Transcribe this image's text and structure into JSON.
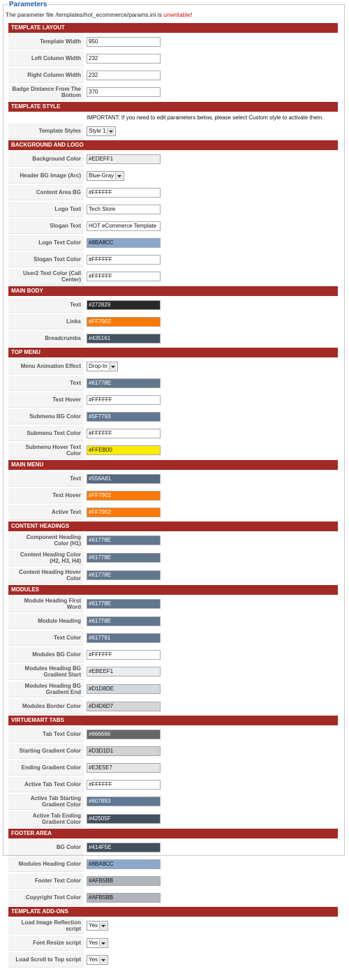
{
  "legend": "Parameters",
  "notice": {
    "text": "The parameter file /templates/hot_ecommerce/params.ini is ",
    "status": "unwritable",
    "end": "!"
  },
  "sections": [
    {
      "title": "TEMPLATE LAYOUT",
      "rows": [
        {
          "type": "input",
          "label": "Template Width",
          "value": "950"
        },
        {
          "type": "input",
          "label": "Left Column Width",
          "value": "232"
        },
        {
          "type": "input",
          "label": "Right Column Width",
          "value": "232"
        },
        {
          "type": "input",
          "label": "Badge Distance From The Bottom",
          "value": "370"
        }
      ]
    },
    {
      "title": "TEMPLATE STYLE",
      "rows": [
        {
          "type": "note",
          "text": "IMPORTANT: If you need to edit parameters below, please select Custom style to activate them."
        },
        {
          "type": "select",
          "label": "Template Styles",
          "value": "Style 1"
        }
      ]
    },
    {
      "title": "BACKGROUND AND LOGO",
      "rows": [
        {
          "type": "color",
          "label": "Background Color",
          "value": "#EDEFF1"
        },
        {
          "type": "select",
          "label": "Header BG Image (Arc)",
          "value": "Blue-Gray"
        },
        {
          "type": "color",
          "label": "Content Area BG",
          "value": "#FFFFFF"
        },
        {
          "type": "input",
          "label": "Logo Text",
          "value": "Tech Store"
        },
        {
          "type": "input",
          "label": "Slogan Text",
          "value": "HOT eCommerce Template"
        },
        {
          "type": "color",
          "label": "Logo Text Color",
          "value": "#8BA8CC"
        },
        {
          "type": "color",
          "label": "Slogan Text Color",
          "value": "#FFFFFF"
        },
        {
          "type": "color",
          "label": "User2 Text Color (Call Center)",
          "value": "#FFFFFF"
        }
      ]
    },
    {
      "title": "MAIN BODY",
      "rows": [
        {
          "type": "color",
          "label": "Text",
          "value": "#272829"
        },
        {
          "type": "color",
          "label": "Links",
          "value": "#FF7902"
        },
        {
          "type": "color",
          "label": "Breadcrumbs",
          "value": "#435161"
        }
      ]
    },
    {
      "title": "TOP MENU",
      "rows": [
        {
          "type": "select",
          "label": "Menu Animation Effect",
          "value": "Drop-In"
        },
        {
          "type": "color",
          "label": "Text",
          "value": "#61778E"
        },
        {
          "type": "color",
          "label": "Text Hover",
          "value": "#FFFFFF"
        },
        {
          "type": "color",
          "label": "Submenu BG Color",
          "value": "#5F7793"
        },
        {
          "type": "color",
          "label": "Submenu Text Color",
          "value": "#FFFFFF"
        },
        {
          "type": "color",
          "label": "Submenu Hover Text Color",
          "value": "#FFEB00"
        }
      ]
    },
    {
      "title": "MAIN MENU",
      "rows": [
        {
          "type": "color",
          "label": "Text",
          "value": "#556A81"
        },
        {
          "type": "color",
          "label": "Text Hover",
          "value": "#FF7902"
        },
        {
          "type": "color",
          "label": "Active Text",
          "value": "#FF7902"
        }
      ]
    },
    {
      "title": "CONTENT HEADINGS",
      "rows": [
        {
          "type": "color",
          "label": "Component Heading Color (H1)",
          "value": "#61778E"
        },
        {
          "type": "color",
          "label": "Content Heading Color (H2, H3, H4)",
          "value": "#61778E"
        },
        {
          "type": "color",
          "label": "Content Heading Hover Color",
          "value": "#61778E"
        }
      ]
    },
    {
      "title": "MODULES",
      "rows": [
        {
          "type": "color",
          "label": "Module Heading First Word",
          "value": "#61778E"
        },
        {
          "type": "color",
          "label": "Module Heading",
          "value": "#61778E"
        },
        {
          "type": "color",
          "label": "Text Color",
          "value": "#617791"
        },
        {
          "type": "color",
          "label": "Modules BG Color",
          "value": "#FFFFFF"
        },
        {
          "type": "color",
          "label": "Modules Heading BG Gradient Start",
          "value": "#EBEEF1"
        },
        {
          "type": "color",
          "label": "Modules Heading BG Gradient End",
          "value": "#D1D8DE"
        },
        {
          "type": "color",
          "label": "Modules Border Color",
          "value": "#D4D6D7"
        }
      ]
    },
    {
      "title": "VIRTUEMART TABS",
      "rows": [
        {
          "type": "color",
          "label": "Tab Text Color",
          "value": "#666666"
        },
        {
          "type": "color",
          "label": "Starting Gradient Color",
          "value": "#D3D1D1"
        },
        {
          "type": "color",
          "label": "Ending Gradient Color",
          "value": "#E3E5E7"
        },
        {
          "type": "color",
          "label": "Active Tab Text Color",
          "value": "#FFFFFF"
        },
        {
          "type": "color",
          "label": "Active Tab Starting Gradient Color",
          "value": "#607893"
        },
        {
          "type": "color",
          "label": "Active Tab Ending Gradient Color",
          "value": "#42505F"
        }
      ]
    },
    {
      "title": "FOOTER AREA",
      "rows": [
        {
          "type": "color",
          "label": "BG Color",
          "value": "#414F5E"
        },
        {
          "type": "color",
          "label": "Modules Heading Color",
          "value": "#8BA8CC"
        },
        {
          "type": "color",
          "label": "Footer Text Color",
          "value": "#AFB5BB"
        },
        {
          "type": "color",
          "label": "Copyright Text Color",
          "value": "#AFB5BB"
        }
      ]
    },
    {
      "title": "TEMPLATE ADD-ONS",
      "rows": [
        {
          "type": "select",
          "label": "Load Image Reflection script",
          "value": "Yes"
        },
        {
          "type": "select",
          "label": "Font Resize script",
          "value": "Yes"
        },
        {
          "type": "select",
          "label": "Load Scroll to Top script",
          "value": "Yes"
        }
      ]
    }
  ]
}
